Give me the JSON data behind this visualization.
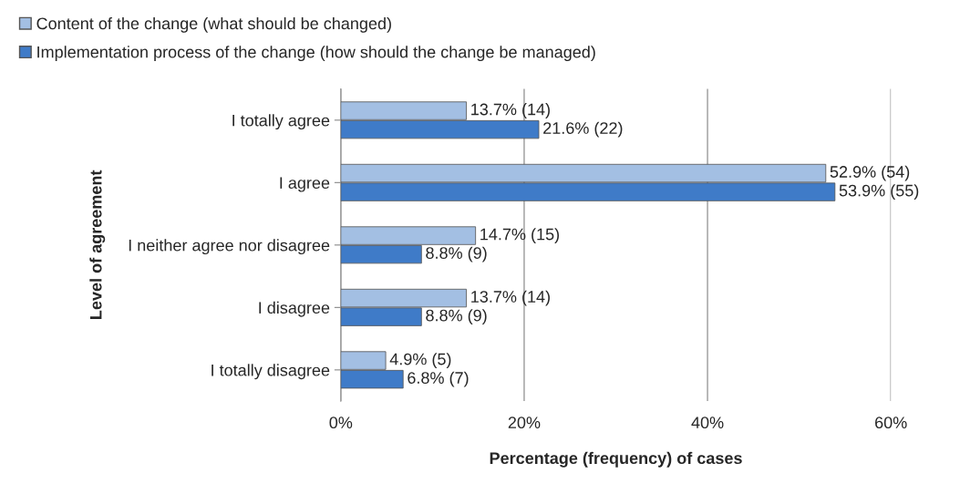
{
  "chart_data": {
    "type": "bar",
    "orientation": "horizontal",
    "xlabel": "Percentage (frequency) of cases",
    "ylabel": "Level of agreement",
    "categories": [
      "I totally agree",
      "I agree",
      "I neither agree nor disagree",
      "I disagree",
      "I totally disagree"
    ],
    "series": [
      {
        "name": "Content of the change (what should be changed)",
        "color": "#a3bfe3",
        "values": [
          13.7,
          52.9,
          14.7,
          13.7,
          4.9
        ],
        "value_labels": [
          "13.7% (14)",
          "52.9% (54)",
          "14.7% (15)",
          "13.7% (14)",
          "4.9% (5)"
        ]
      },
      {
        "name": "Implementation process of the change (how should the change be managed)",
        "color": "#3f7bc8",
        "values": [
          21.6,
          53.9,
          8.8,
          8.8,
          6.8
        ],
        "value_labels": [
          "21.6% (22)",
          "53.9% (55)",
          "8.8% (9)",
          "8.8% (9)",
          "6.8% (7)"
        ]
      }
    ],
    "xlim": [
      0,
      60
    ],
    "xticks": [
      {
        "value": 0,
        "label": "0%"
      },
      {
        "value": 20,
        "label": "20%"
      },
      {
        "value": 40,
        "label": "40%"
      },
      {
        "value": 60,
        "label": "60%"
      }
    ],
    "grid": "x",
    "legend": "top"
  }
}
